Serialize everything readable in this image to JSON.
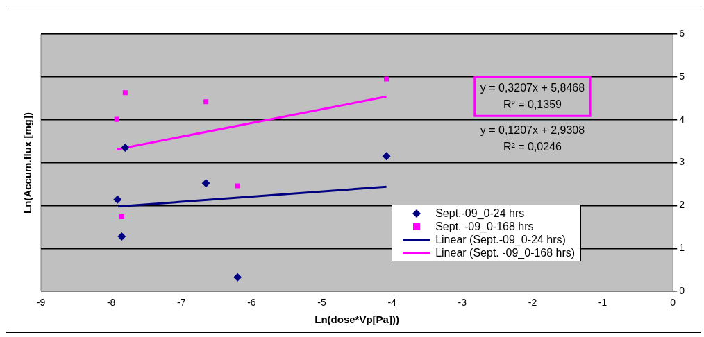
{
  "chart_data": {
    "type": "scatter",
    "xlabel": "Ln(dose*Vp[Pa]))",
    "ylabel": "Ln(Accum.flux [mg])",
    "xlim": [
      -9,
      0
    ],
    "xticks": [
      -9,
      -8,
      -7,
      -6,
      -5,
      -4,
      -3,
      -2,
      -1,
      0
    ],
    "ylim": [
      0,
      6
    ],
    "yticks": [
      0,
      1,
      2,
      3,
      4,
      5,
      6
    ],
    "grid": "y",
    "legend": "bottom right",
    "annotations": [
      "y = 0,3207x + 5,8468\nR² = 0,1359",
      "y = 0,1207x + 2,9308\nR² = 0,0246"
    ],
    "series": [
      {
        "name": "Sept.-09_0-24 hrs",
        "marker": "diamond",
        "color": "#000080",
        "x": [
          -7.91,
          -7.85,
          -7.8,
          -6.65,
          -6.2,
          -4.08
        ],
        "values": [
          2.14,
          1.28,
          3.35,
          2.52,
          0.33,
          3.15
        ]
      },
      {
        "name": "Sept. -09_0-168 hrs",
        "marker": "square",
        "color": "#ff00ff",
        "x": [
          -7.92,
          -7.8,
          -7.85,
          -6.65,
          -6.2,
          -4.08
        ],
        "values": [
          4.01,
          4.63,
          1.74,
          4.42,
          2.46,
          4.95
        ]
      },
      {
        "name": "Linear (Sept.-09_0-24 hrs)",
        "type": "line",
        "marker": "none",
        "color": "#000080",
        "x": [
          -7.9,
          -4.08
        ],
        "values": [
          1.98,
          2.44
        ]
      },
      {
        "name": "Linear (Sept. -09_0-168 hrs)",
        "type": "line",
        "marker": "none",
        "color": "#ff00ff",
        "x": [
          -7.92,
          -4.08
        ],
        "values": [
          3.31,
          4.54
        ]
      }
    ]
  }
}
